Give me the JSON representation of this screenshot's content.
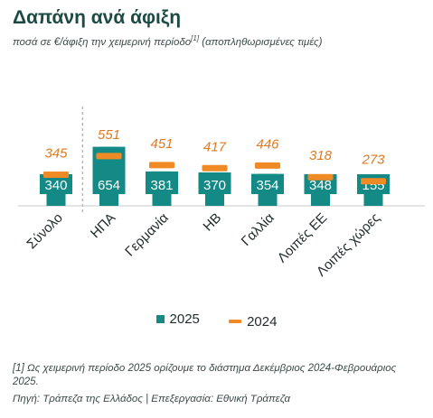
{
  "title": "Δαπάνη ανά άφιξη",
  "subtitle_main": "ποσά σε €/άφιξη την χειμερινή περίοδο",
  "subtitle_ref": "[1]",
  "subtitle_tail": " (αποπληθωρισμένες τιμές)",
  "legend": {
    "s2025": "2025",
    "s2024": "2024"
  },
  "footnote": "[1] Ως χειμερινή περίοδο 2025 ορίζουμε το διάστημα Δεκέμβριος 2024-Φεβρουάριος 2025.",
  "source": "Πηγή: Τράπεζα της Ελλάδος | Επεξεργασία: Εθνική Τράπεζα",
  "colors": {
    "bar2025": "#138a86",
    "marker2024": "#f08a24",
    "label2024": "#e07a1f",
    "axis": "#999999"
  },
  "chart_data": {
    "type": "bar",
    "categories": [
      "Σύνολο",
      "ΗΠΑ",
      "Γερμανία",
      "ΗΒ",
      "Γαλλία",
      "Λοιπές ΕΕ",
      "Λοιπές χώρες"
    ],
    "series": [
      {
        "name": "2025",
        "type": "bar",
        "values": [
          340,
          654,
          381,
          370,
          354,
          348,
          155
        ]
      },
      {
        "name": "2024",
        "type": "marker",
        "values": [
          345,
          551,
          451,
          417,
          446,
          318,
          273
        ]
      }
    ],
    "separator_after_category": "Σύνολο",
    "legend_position": "bottom",
    "grid": false
  }
}
